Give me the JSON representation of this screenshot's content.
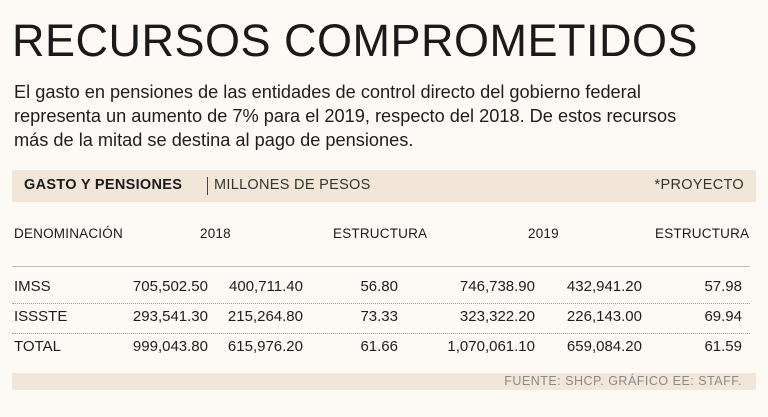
{
  "title": "RECURSOS COMPROMETIDOS",
  "intro": {
    "line1": "El gasto en pensiones de las entidades de control directo del gobierno federal",
    "line2": "representa un aumento de 7% para el 2019, respecto del 2018. De estos recursos",
    "line3": "más de la mitad se destina al pago de pensiones."
  },
  "table_bar": {
    "title": "GASTO Y PENSIONES",
    "units": "MILLONES DE PESOS",
    "note": "*PROYECTO"
  },
  "headers": {
    "denominacion": "DENOMINACIÓN",
    "year_2018": "2018",
    "estructura_2018": "ESTRUCTURA",
    "year_2019": "2019",
    "estructura_2019": "ESTRUCTURA"
  },
  "rows": [
    {
      "name": "IMSS",
      "total_2018": "705,502.50",
      "pensiones_2018": "400,711.40",
      "estructura_2018": "56.80",
      "total_2019": "746,738.90",
      "pensiones_2019": "432,941.20",
      "estructura_2019": "57.98"
    },
    {
      "name": "ISSSTE",
      "total_2018": "293,541.30",
      "pensiones_2018": "215,264.80",
      "estructura_2018": "73.33",
      "total_2019": "323,322.20",
      "pensiones_2019": "226,143.00",
      "estructura_2019": "69.94"
    },
    {
      "name": "TOTAL",
      "total_2018": "999,043.80",
      "pensiones_2018": "615,976.20",
      "estructura_2018": "61.66",
      "total_2019": "1,070,061.10",
      "pensiones_2019": "659,084.20",
      "estructura_2019": "61.59"
    }
  ],
  "footer": "FUENTE: SHCP. GRÁFICO EE: STAFF."
}
